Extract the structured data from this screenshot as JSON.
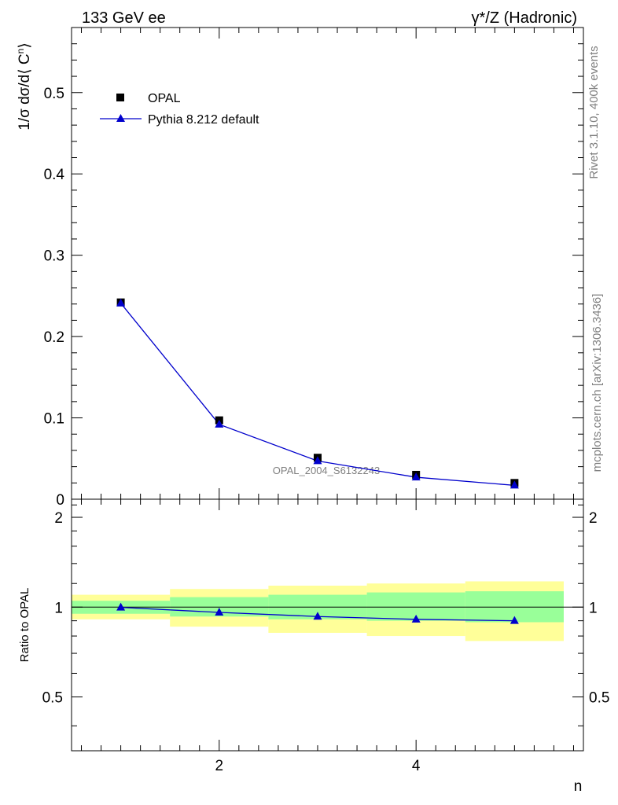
{
  "header": {
    "left_title": "133 GeV ee",
    "right_title": "γ*/Z (Hadronic)"
  },
  "side_labels": {
    "rivet": "Rivet 3.1.10,  400k events",
    "mcplots": "mcplots.cern.ch [arXiv:1306.3436]"
  },
  "watermark": "OPAL_2004_S6132243",
  "chart_data": [
    {
      "type": "scatter",
      "panel": "main",
      "ylabel": "1/σ dσ/d⟨ C^n⟩",
      "xlabel": "",
      "xlim": [
        0.5,
        5.7
      ],
      "ylim": [
        0,
        0.58
      ],
      "yticks": [
        0,
        0.1,
        0.2,
        0.3,
        0.4,
        0.5
      ],
      "ytick_labels": [
        "0",
        "0.1",
        "0.2",
        "0.3",
        "0.4",
        "0.5"
      ],
      "legend_position": "top-left",
      "series": [
        {
          "name": "OPAL",
          "style": "markers",
          "marker": "square",
          "color": "#000000",
          "x": [
            1,
            2,
            3,
            4,
            5
          ],
          "y": [
            0.242,
            0.097,
            0.051,
            0.03,
            0.02
          ]
        },
        {
          "name": "Pythia 8.212 default",
          "style": "line+markers",
          "marker": "triangle",
          "color": "#0000cc",
          "x": [
            1,
            2,
            3,
            4,
            5
          ],
          "y": [
            0.241,
            0.092,
            0.047,
            0.027,
            0.017
          ]
        }
      ]
    },
    {
      "type": "line",
      "panel": "ratio",
      "ylabel": "Ratio to OPAL",
      "xlabel": "n",
      "xlim": [
        0.5,
        5.7
      ],
      "ylim": [
        0.33,
        2.3
      ],
      "log_y": true,
      "yticks": [
        0.5,
        1,
        2
      ],
      "ytick_labels": [
        "0.5",
        "1",
        "2"
      ],
      "xticks": [
        2,
        4
      ],
      "xtick_labels": [
        "2",
        "4"
      ],
      "bands": {
        "bin_edges": [
          0.5,
          1.5,
          2.5,
          3.5,
          4.5,
          5.5
        ],
        "yellow_low": [
          0.91,
          0.86,
          0.82,
          0.8,
          0.77
        ],
        "yellow_high": [
          1.1,
          1.15,
          1.18,
          1.2,
          1.22
        ],
        "green_low": [
          0.95,
          0.93,
          0.91,
          0.9,
          0.89
        ],
        "green_high": [
          1.05,
          1.08,
          1.1,
          1.12,
          1.13
        ],
        "green_color": "#99ff99",
        "yellow_color": "#ffff99"
      },
      "series": [
        {
          "name": "Pythia 8.212 default",
          "color": "#0000cc",
          "x": [
            1,
            2,
            3,
            4,
            5
          ],
          "y": [
            0.998,
            0.96,
            0.93,
            0.91,
            0.9
          ]
        }
      ]
    }
  ]
}
